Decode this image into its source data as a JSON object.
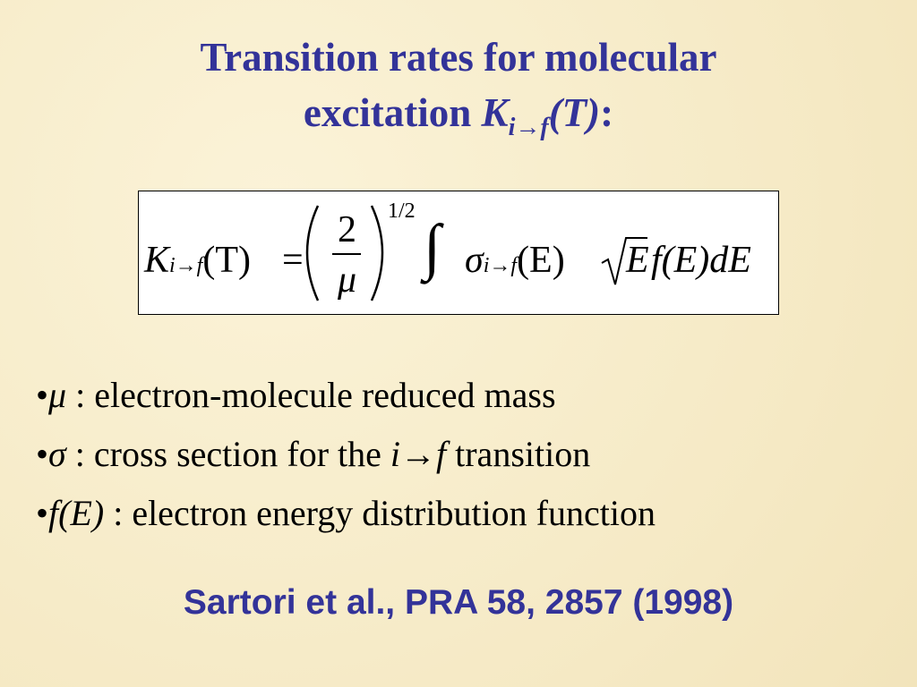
{
  "title": {
    "line1": "Transition rates for molecular",
    "line2": "excitation",
    "symbol": "K",
    "subscript": "i→f",
    "argument": "(T)",
    "colon": ":"
  },
  "formula": {
    "lhs_symbol": "K",
    "lhs_subscript": "i→f",
    "lhs_argument": "(T)",
    "equals": "=",
    "numerator": "2",
    "denominator": "μ",
    "exponent": "1/2",
    "integral": "∫",
    "sigma": "σ",
    "sigma_subscript": "i→f",
    "sigma_argument": "(E)",
    "sqrt_argument": "E",
    "rest": "f(E)dE"
  },
  "bullets": [
    {
      "marker": "•",
      "symbol": "μ",
      "text": " : electron-molecule reduced mass"
    },
    {
      "marker": "•",
      "symbol": "σ",
      "text": " : cross section for the ",
      "symbol2": "i→f",
      "text2": " transition"
    },
    {
      "marker": "•",
      "symbol": "f(E)",
      "text": " : electron energy distribution function"
    }
  ],
  "reference": "Sartori et al., PRA 58, 2857 (1998)"
}
